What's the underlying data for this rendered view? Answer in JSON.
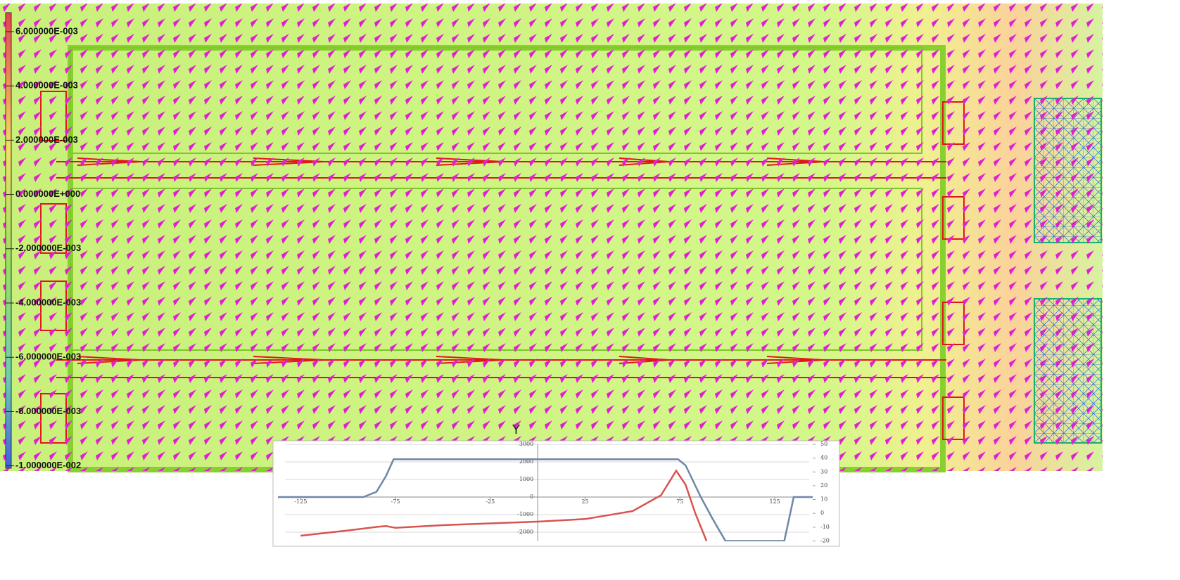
{
  "legend": {
    "labels": [
      "6.000000E-003",
      "4.000000E-003",
      "2.000000E-003",
      "0.000000E+000",
      "-2.000000E-003",
      "-4.000000E-003",
      "-6.000000E-003",
      "-8.000000E-003",
      "-1.000000E-002"
    ]
  },
  "axis_label": "Y",
  "chart_data": {
    "type": "line",
    "xlim": [
      -137,
      145
    ],
    "xticks": [
      -125,
      -75,
      -25,
      25,
      75,
      125
    ],
    "ylim": [
      -2500,
      3000
    ],
    "yticks": [
      3000,
      2000,
      1000,
      0,
      -1000,
      -2000
    ],
    "y2lim": [
      -20,
      50
    ],
    "y2ticks": [
      50,
      40,
      30,
      20,
      10,
      0,
      -10,
      -20
    ],
    "grid": true,
    "series": [
      {
        "color": "#6f86a8",
        "x": [
          -137,
          -92,
          -85,
          -80,
          -76,
          74,
          78,
          82,
          86,
          92,
          99,
          130,
          133,
          135,
          145
        ],
        "values": [
          0,
          0,
          300,
          1200,
          2150,
          2150,
          1800,
          900,
          0,
          -1200,
          -2500,
          -2500,
          -1000,
          0,
          0
        ]
      },
      {
        "color": "#d9534f",
        "x": [
          -125,
          -100,
          -85,
          -80,
          -75,
          -50,
          0,
          25,
          50,
          65,
          73,
          78,
          83,
          89
        ],
        "values": [
          -2200,
          -1900,
          -1700,
          -1650,
          -1750,
          -1600,
          -1400,
          -1250,
          -800,
          100,
          1500,
          700,
          -900,
          -2500
        ]
      }
    ]
  }
}
